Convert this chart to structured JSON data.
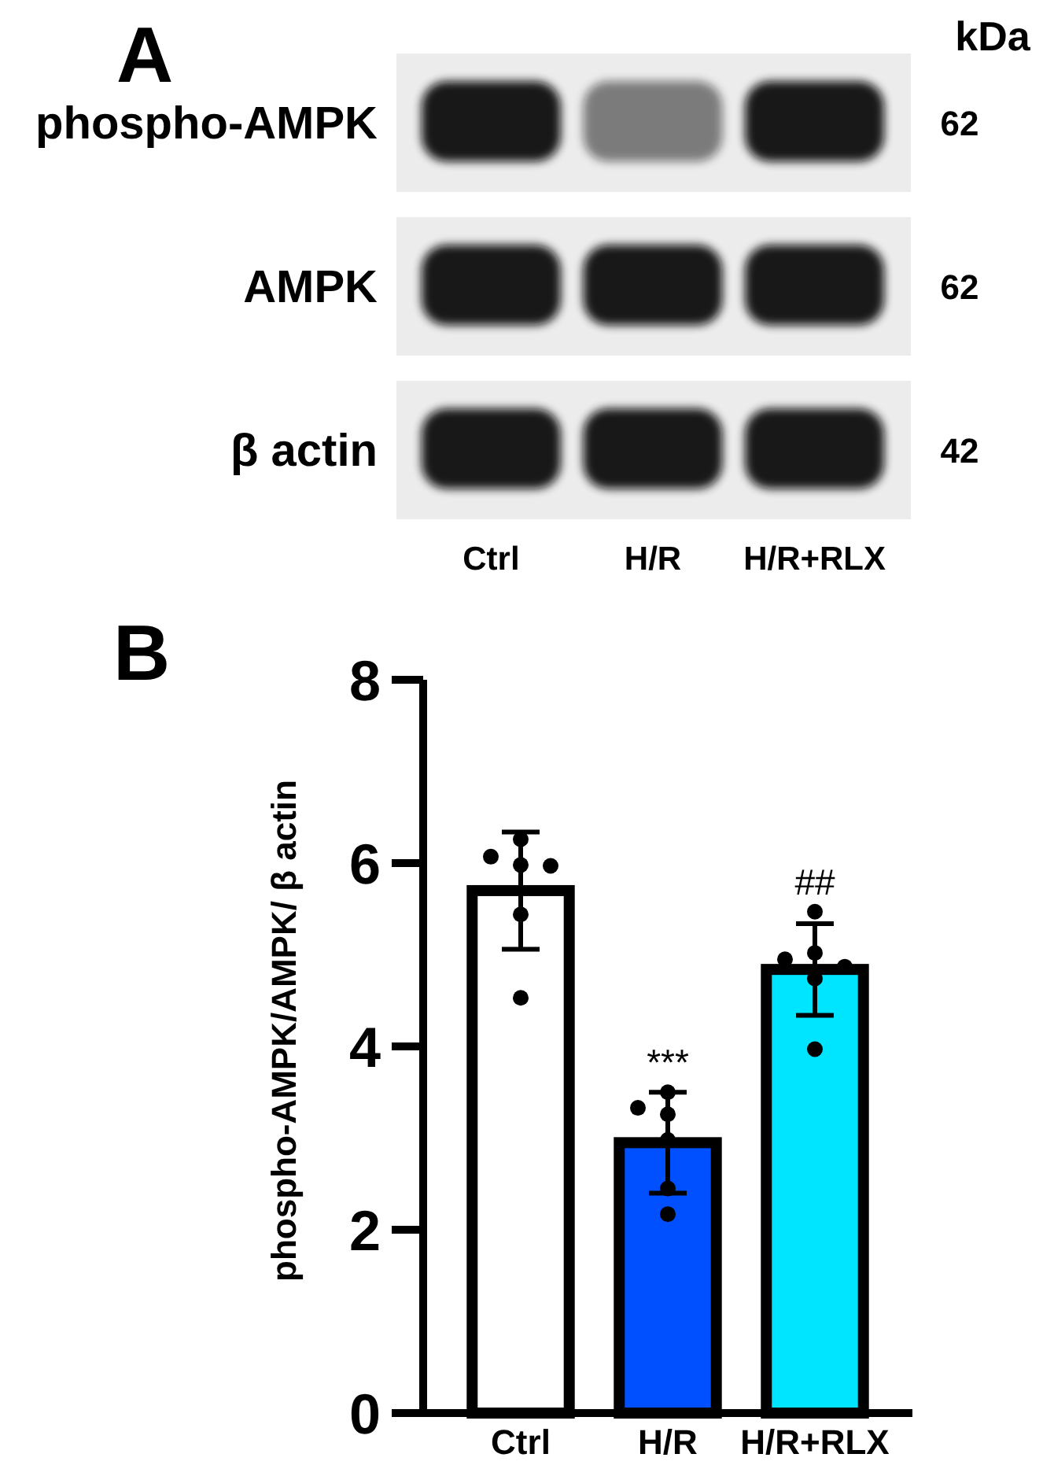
{
  "chart_data": [
    {
      "type": "other",
      "title": "A",
      "categories": [
        "Ctrl",
        "H/R",
        "H/R+RLX"
      ],
      "y_categories": [
        "phospho-AMPK",
        "AMPK",
        "β actin"
      ],
      "y2_categories": [
        "62",
        "62",
        "42"
      ],
      "y2label": "kDa"
    },
    {
      "type": "bar",
      "title": "B",
      "ylabel": "phospho-AMPK/AMPK/ β actin",
      "categories": [
        "Ctrl",
        "H/R",
        "H/R+RLX"
      ],
      "series": [
        {
          "type": "bar",
          "values": [
            5.7,
            2.95,
            4.84
          ],
          "colors": [
            "#ffffff",
            "#0050ff",
            "#00e5ff"
          ],
          "errors": [
            0.64,
            0.55,
            0.5
          ]
        },
        {
          "type": "scatter",
          "color": "#000000",
          "x": [
            "Ctrl",
            "Ctrl",
            "Ctrl",
            "Ctrl",
            "Ctrl",
            "Ctrl",
            "H/R",
            "H/R",
            "H/R",
            "H/R",
            "H/R",
            "H/R",
            "H/R+RLX",
            "H/R+RLX",
            "H/R+RLX",
            "H/R+RLX",
            "H/R+RLX",
            "H/R+RLX"
          ],
          "values": [
            6.26,
            6.07,
            5.98,
            5.97,
            5.44,
            4.53,
            3.5,
            3.33,
            3.26,
            2.98,
            2.45,
            2.17,
            5.47,
            5.02,
            4.95,
            4.87,
            4.74,
            3.97
          ]
        }
      ],
      "ylim": [
        0,
        8
      ],
      "yticks": [
        0,
        2,
        4,
        6,
        8
      ],
      "annotations": [
        {
          "text": "***",
          "x": "H/R",
          "y": 3.5
        },
        {
          "text": "##",
          "x": "H/R+RLX",
          "y": 5.47
        }
      ]
    }
  ]
}
